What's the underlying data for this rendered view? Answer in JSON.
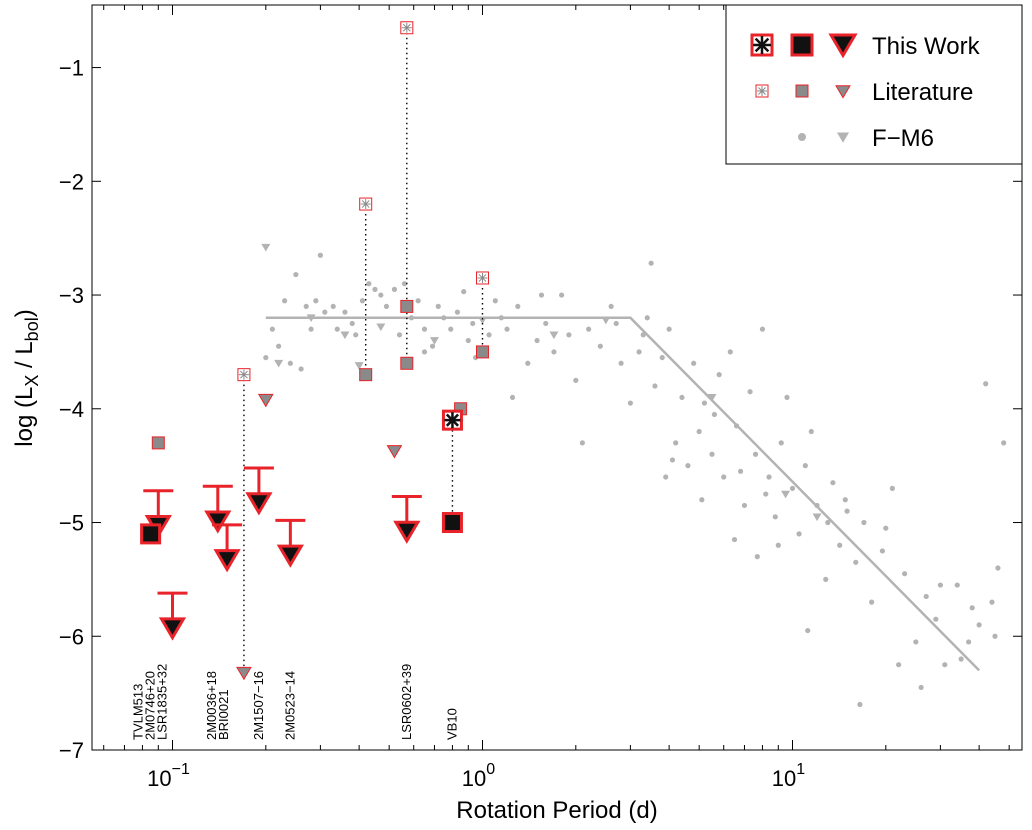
{
  "chart_data": {
    "type": "scatter",
    "title": "",
    "xlabel": "Rotation Period  (d)",
    "ylabel": "log (L_X / L_bol)",
    "xscale": "log",
    "xlim": [
      0.055,
      55
    ],
    "ylim": [
      -7,
      -0.45
    ],
    "x_ticks": [
      {
        "value": 0.1,
        "base": "10",
        "exp": "−1"
      },
      {
        "value": 1,
        "base": "10",
        "exp": "0"
      },
      {
        "value": 10,
        "base": "10",
        "exp": "1"
      }
    ],
    "y_ticks": [
      {
        "value": -1,
        "label": "−1"
      },
      {
        "value": -2,
        "label": "−2"
      },
      {
        "value": -3,
        "label": "−3"
      },
      {
        "value": -4,
        "label": "−4"
      },
      {
        "value": -5,
        "label": "−5"
      },
      {
        "value": -6,
        "label": "−6"
      },
      {
        "value": -7,
        "label": "−7"
      }
    ],
    "legend": {
      "position": "top-right",
      "entries": [
        {
          "label": "This Work",
          "markers": [
            "asterisk-box",
            "square",
            "triangle"
          ],
          "style": "this"
        },
        {
          "label": "Literature",
          "markers": [
            "asterisk-box",
            "square",
            "triangle"
          ],
          "style": "lit"
        },
        {
          "label": "F−M6",
          "markers": [
            "dot",
            "triangle"
          ],
          "style": "fm6"
        }
      ]
    },
    "colors": {
      "red": "#e8232a",
      "gray_marker": "#8a8a8a",
      "light_gray": "#b3b3b3",
      "black": "#111111"
    },
    "fit_line": {
      "name": "saturation relation",
      "points": [
        [
          0.2,
          -3.2
        ],
        [
          3.0,
          -3.2
        ],
        [
          40,
          -6.3
        ]
      ]
    },
    "connectors": [
      {
        "x": 0.17,
        "y1": -3.7,
        "y2": -6.3
      },
      {
        "x": 0.42,
        "y1": -2.2,
        "y2": -3.7
      },
      {
        "x": 0.57,
        "y1": -0.65,
        "y2": -3.6
      },
      {
        "x": 1.0,
        "y1": -2.85,
        "y2": -3.5
      },
      {
        "x": 0.8,
        "y1": -4.1,
        "y2": -5.0
      }
    ],
    "this_work": {
      "asterisk": [
        [
          0.8,
          -4.1
        ]
      ],
      "squares": [
        [
          0.085,
          -5.1
        ],
        [
          0.8,
          -5.0
        ]
      ],
      "upper_limits": [
        [
          0.09,
          -5.02
        ],
        [
          0.1,
          -5.92
        ],
        [
          0.14,
          -4.98
        ],
        [
          0.15,
          -5.32
        ],
        [
          0.19,
          -4.82
        ],
        [
          0.24,
          -5.28
        ],
        [
          0.57,
          -5.07
        ]
      ]
    },
    "literature": {
      "asterisk_box": [
        [
          0.17,
          -3.7
        ],
        [
          0.42,
          -2.2
        ],
        [
          0.57,
          -0.65
        ],
        [
          1.0,
          -2.85
        ]
      ],
      "squares": [
        [
          0.09,
          -4.3
        ],
        [
          0.42,
          -3.7
        ],
        [
          0.57,
          -3.1
        ],
        [
          0.57,
          -3.6
        ],
        [
          1.0,
          -3.5
        ],
        [
          0.85,
          -4.0
        ],
        [
          0.8,
          -4.1
        ]
      ],
      "triangles": [
        [
          0.2,
          -3.92
        ],
        [
          0.17,
          -6.32
        ],
        [
          0.52,
          -4.37
        ]
      ]
    },
    "fm6": {
      "dots": [
        [
          0.2,
          -3.55
        ],
        [
          0.21,
          -3.3
        ],
        [
          0.22,
          -3.45
        ],
        [
          0.23,
          -3.05
        ],
        [
          0.24,
          -3.6
        ],
        [
          0.25,
          -2.82
        ],
        [
          0.27,
          -3.1
        ],
        [
          0.28,
          -3.3
        ],
        [
          0.29,
          -3.05
        ],
        [
          0.3,
          -2.65
        ],
        [
          0.31,
          -3.15
        ],
        [
          0.33,
          -3.1
        ],
        [
          0.34,
          -3.3
        ],
        [
          0.36,
          -3.15
        ],
        [
          0.38,
          -3.25
        ],
        [
          0.39,
          -3.35
        ],
        [
          0.41,
          -3.05
        ],
        [
          0.43,
          -2.9
        ],
        [
          0.45,
          -2.95
        ],
        [
          0.47,
          -3.0
        ],
        [
          0.49,
          -3.1
        ],
        [
          0.52,
          -2.95
        ],
        [
          0.54,
          -3.35
        ],
        [
          0.56,
          -2.9
        ],
        [
          0.59,
          -3.2
        ],
        [
          0.62,
          -3.05
        ],
        [
          0.65,
          -3.3
        ],
        [
          0.69,
          -3.45
        ],
        [
          0.72,
          -3.1
        ],
        [
          0.75,
          -3.2
        ],
        [
          0.79,
          -3.3
        ],
        [
          0.83,
          -3.15
        ],
        [
          0.87,
          -2.97
        ],
        [
          0.9,
          -3.4
        ],
        [
          0.93,
          -3.25
        ],
        [
          0.95,
          -3.55
        ],
        [
          1.05,
          -3.35
        ],
        [
          1.1,
          -3.05
        ],
        [
          1.15,
          -3.2
        ],
        [
          1.2,
          -3.3
        ],
        [
          1.3,
          -3.1
        ],
        [
          1.4,
          -3.6
        ],
        [
          1.5,
          -3.4
        ],
        [
          1.6,
          -3.25
        ],
        [
          1.7,
          -3.5
        ],
        [
          1.8,
          -3.0
        ],
        [
          1.9,
          -3.35
        ],
        [
          2.0,
          -3.75
        ],
        [
          2.2,
          -3.3
        ],
        [
          2.4,
          -3.45
        ],
        [
          2.6,
          -3.1
        ],
        [
          2.8,
          -3.6
        ],
        [
          3.0,
          -3.95
        ],
        [
          3.2,
          -3.5
        ],
        [
          3.4,
          -3.2
        ],
        [
          3.5,
          -2.72
        ],
        [
          3.6,
          -3.8
        ],
        [
          3.8,
          -3.55
        ],
        [
          4.0,
          -3.3
        ],
        [
          4.2,
          -4.3
        ],
        [
          4.4,
          -3.9
        ],
        [
          4.6,
          -4.5
        ],
        [
          4.8,
          -3.6
        ],
        [
          5.0,
          -4.2
        ],
        [
          5.2,
          -3.95
        ],
        [
          5.5,
          -4.4
        ],
        [
          5.8,
          -3.7
        ],
        [
          6.0,
          -4.6
        ],
        [
          6.3,
          -3.5
        ],
        [
          6.6,
          -4.15
        ],
        [
          7.0,
          -4.85
        ],
        [
          7.3,
          -3.85
        ],
        [
          7.6,
          -4.4
        ],
        [
          8.0,
          -3.3
        ],
        [
          8.4,
          -4.6
        ],
        [
          8.8,
          -4.95
        ],
        [
          9.2,
          -4.3
        ],
        [
          9.6,
          -3.9
        ],
        [
          10.0,
          -4.7
        ],
        [
          10.5,
          -5.1
        ],
        [
          11.0,
          -4.5
        ],
        [
          11.5,
          -4.2
        ],
        [
          12.0,
          -4.85
        ],
        [
          12.8,
          -5.5
        ],
        [
          13.5,
          -4.65
        ],
        [
          14.2,
          -5.2
        ],
        [
          15.0,
          -4.9
        ],
        [
          16.0,
          -5.35
        ],
        [
          17.0,
          -5.0
        ],
        [
          18.0,
          -5.7
        ],
        [
          19.5,
          -5.25
        ],
        [
          21.0,
          -4.7
        ],
        [
          23.0,
          -5.45
        ],
        [
          25.0,
          -6.05
        ],
        [
          27.0,
          -5.65
        ],
        [
          29.0,
          -5.85
        ],
        [
          31.0,
          -6.25
        ],
        [
          34.0,
          -5.55
        ],
        [
          37.0,
          -6.05
        ],
        [
          40.0,
          -5.9
        ],
        [
          44.0,
          -5.7
        ],
        [
          48.0,
          -4.3
        ],
        [
          2.1,
          -4.3
        ],
        [
          0.85,
          -4.1
        ],
        [
          1.25,
          -3.9
        ],
        [
          0.26,
          -3.65
        ],
        [
          4.1,
          -4.45
        ],
        [
          6.8,
          -4.55
        ],
        [
          9.0,
          -5.2
        ],
        [
          13.0,
          -5.0
        ],
        [
          16.5,
          -6.6
        ],
        [
          22.0,
          -6.25
        ],
        [
          26.0,
          -6.45
        ],
        [
          35.0,
          -6.2
        ],
        [
          42.0,
          -3.78
        ],
        [
          45.0,
          -6.0
        ],
        [
          3.3,
          -3.35
        ],
        [
          0.65,
          -3.5
        ],
        [
          1.55,
          -3.0
        ],
        [
          2.7,
          -3.25
        ],
        [
          5.6,
          -4.05
        ],
        [
          8.2,
          -4.75
        ],
        [
          11.2,
          -5.95
        ],
        [
          7.7,
          -5.3
        ],
        [
          14.8,
          -4.8
        ],
        [
          20.0,
          -5.05
        ],
        [
          30.0,
          -5.55
        ],
        [
          46.0,
          -5.4
        ],
        [
          38.0,
          -5.75
        ],
        [
          3.9,
          -4.6
        ],
        [
          5.1,
          -4.8
        ],
        [
          6.5,
          -5.15
        ]
      ],
      "triangles": [
        [
          0.2,
          -2.58
        ],
        [
          0.22,
          -3.6
        ],
        [
          0.28,
          -3.2
        ],
        [
          0.36,
          -3.35
        ],
        [
          0.4,
          -3.62
        ],
        [
          0.47,
          -3.28
        ],
        [
          0.7,
          -3.4
        ],
        [
          1.0,
          -3.22
        ],
        [
          1.7,
          -3.35
        ],
        [
          2.5,
          -3.22
        ],
        [
          5.5,
          -3.9
        ],
        [
          9.5,
          -4.75
        ],
        [
          12.0,
          -4.95
        ]
      ]
    },
    "object_labels": [
      {
        "x": 0.085,
        "lines": [
          "TVLM513",
          "2M0746+20",
          "LSR1835+32"
        ]
      },
      {
        "x": 0.14,
        "lines": [
          "2M0036+18",
          "BRI0021"
        ]
      },
      {
        "x": 0.19,
        "lines": [
          "2M1507−16"
        ]
      },
      {
        "x": 0.24,
        "lines": [
          "2M0523−14"
        ]
      },
      {
        "x": 0.57,
        "lines": [
          "LSR0602+39"
        ]
      },
      {
        "x": 0.8,
        "lines": [
          "VB10"
        ]
      }
    ]
  }
}
